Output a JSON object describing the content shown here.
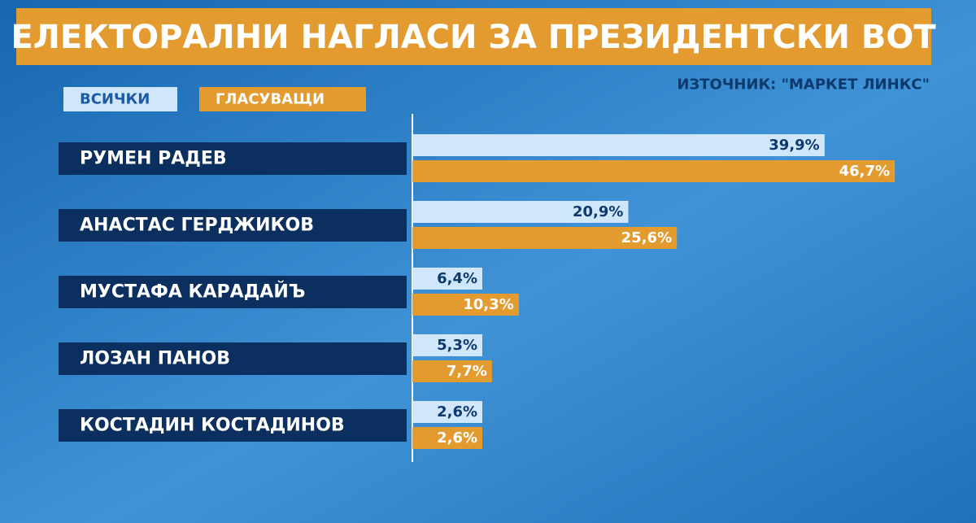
{
  "chart_data": {
    "type": "bar",
    "orientation": "horizontal",
    "title": "ЕЛЕКТОРАЛНИ НАГЛАСИ ЗА ПРЕЗИДЕНТСКИ ВОТ",
    "source": "ИЗТОЧНИК: \"МАРКЕТ ЛИНКС\"",
    "categories": [
      "РУМЕН РАДЕВ",
      "АНАСТАС ГЕРДЖИКОВ",
      "МУСТАФА КАРАДАЙЪ",
      "ЛОЗАН ПАНОВ",
      "КОСТАДИН КОСТАДИНОВ"
    ],
    "series": [
      {
        "name": "ВСИЧКИ",
        "color": "#cfe6fb",
        "values": [
          39.9,
          20.9,
          6.4,
          5.3,
          2.6
        ],
        "value_labels": [
          "39,9%",
          "20,9%",
          "6,4%",
          "5,3%",
          "2,6%"
        ]
      },
      {
        "name": "ГЛАСУВАЩИ",
        "color": "#e39a2f",
        "values": [
          46.7,
          25.6,
          10.3,
          7.7,
          2.6
        ],
        "value_labels": [
          "46,7%",
          "25,6%",
          "10,3%",
          "7,7%",
          "2,6%"
        ]
      }
    ],
    "xlim": [
      0,
      50
    ]
  }
}
